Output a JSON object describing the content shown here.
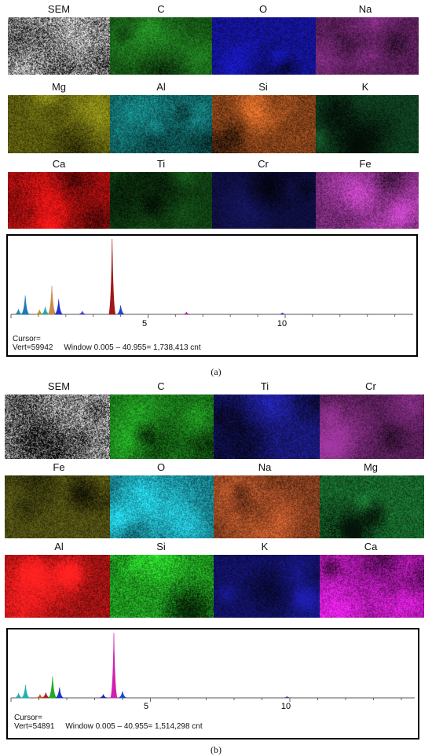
{
  "panels": [
    {
      "caption": "(a)",
      "rows": [
        [
          {
            "label": "SEM",
            "color": "#8a8a8a",
            "kind": "sem"
          },
          {
            "label": "C",
            "color": "#1f7a1f"
          },
          {
            "label": "O",
            "color": "#1a1acc"
          },
          {
            "label": "Na",
            "color": "#7a2a7a"
          }
        ],
        [
          {
            "label": "Mg",
            "color": "#7a7a14"
          },
          {
            "label": "Al",
            "color": "#178b8b"
          },
          {
            "label": "Si",
            "color": "#b55a22"
          },
          {
            "label": "K",
            "color": "#14552a"
          }
        ],
        [
          {
            "label": "Ca",
            "color": "#e01414"
          },
          {
            "label": "Ti",
            "color": "#16581a"
          },
          {
            "label": "Cr",
            "color": "#14145a"
          },
          {
            "label": "Fe",
            "color": "#a33aa3"
          }
        ]
      ],
      "spectrum": {
        "tick_labels": [
          "5",
          "10"
        ],
        "cursor_line1": "Cursor=",
        "cursor_line2": "Vert=59942     Window 0.005 – 40.955= 1,738,413 cnt",
        "peaks": [
          {
            "x": 0.27,
            "h": 0.07,
            "color": "#2a8aa8"
          },
          {
            "x": 0.52,
            "h": 0.25,
            "color": "#1e7ab5"
          },
          {
            "x": 1.04,
            "h": 0.06,
            "color": "#b59a30"
          },
          {
            "x": 1.25,
            "h": 0.1,
            "color": "#2aa8a8"
          },
          {
            "x": 1.49,
            "h": 0.38,
            "color": "#c98a4a"
          },
          {
            "x": 1.74,
            "h": 0.2,
            "color": "#2233cc"
          },
          {
            "x": 2.6,
            "h": 0.04,
            "color": "#4444cc"
          },
          {
            "x": 3.69,
            "h": 1.0,
            "color": "#a01818"
          },
          {
            "x": 4.0,
            "h": 0.12,
            "color": "#2244cc"
          },
          {
            "x": 6.4,
            "h": 0.03,
            "color": "#aa33aa"
          },
          {
            "x": 9.9,
            "h": 0.02,
            "color": "#3344aa"
          }
        ]
      }
    },
    {
      "caption": "(b)",
      "rows": [
        [
          {
            "label": "SEM",
            "color": "#8a8a8a",
            "kind": "sem"
          },
          {
            "label": "C",
            "color": "#22a022"
          },
          {
            "label": "Ti",
            "color": "#2222aa"
          },
          {
            "label": "Cr",
            "color": "#7a2a7a"
          }
        ],
        [
          {
            "label": "Fe",
            "color": "#6b6b1a"
          },
          {
            "label": "O",
            "color": "#20b0c0"
          },
          {
            "label": "Na",
            "color": "#b5552a"
          },
          {
            "label": "Mg",
            "color": "#1f8a3a"
          }
        ],
        [
          {
            "label": "Al",
            "color": "#dd1a1a"
          },
          {
            "label": "Si",
            "color": "#2ad02a"
          },
          {
            "label": "K",
            "color": "#18188a"
          },
          {
            "label": "Ca",
            "color": "#e020e0"
          }
        ]
      ],
      "spectrum": {
        "tick_labels": [
          "5",
          "10"
        ],
        "cursor_line1": "Cursor=",
        "cursor_line2": "Vert=54891     Window 0.005 – 40.955= 1,514,298 cnt",
        "peaks": [
          {
            "x": 0.27,
            "h": 0.07,
            "color": "#2aa8a8"
          },
          {
            "x": 0.52,
            "h": 0.2,
            "color": "#20b0b0"
          },
          {
            "x": 1.04,
            "h": 0.05,
            "color": "#cc5522"
          },
          {
            "x": 1.25,
            "h": 0.08,
            "color": "#aa2222"
          },
          {
            "x": 1.49,
            "h": 0.33,
            "color": "#22aa22"
          },
          {
            "x": 1.74,
            "h": 0.16,
            "color": "#2233cc"
          },
          {
            "x": 3.31,
            "h": 0.05,
            "color": "#2222aa"
          },
          {
            "x": 3.69,
            "h": 1.0,
            "color": "#d020b0"
          },
          {
            "x": 4.0,
            "h": 0.1,
            "color": "#2244cc"
          },
          {
            "x": 9.9,
            "h": 0.02,
            "color": "#3344aa"
          }
        ]
      }
    }
  ]
}
